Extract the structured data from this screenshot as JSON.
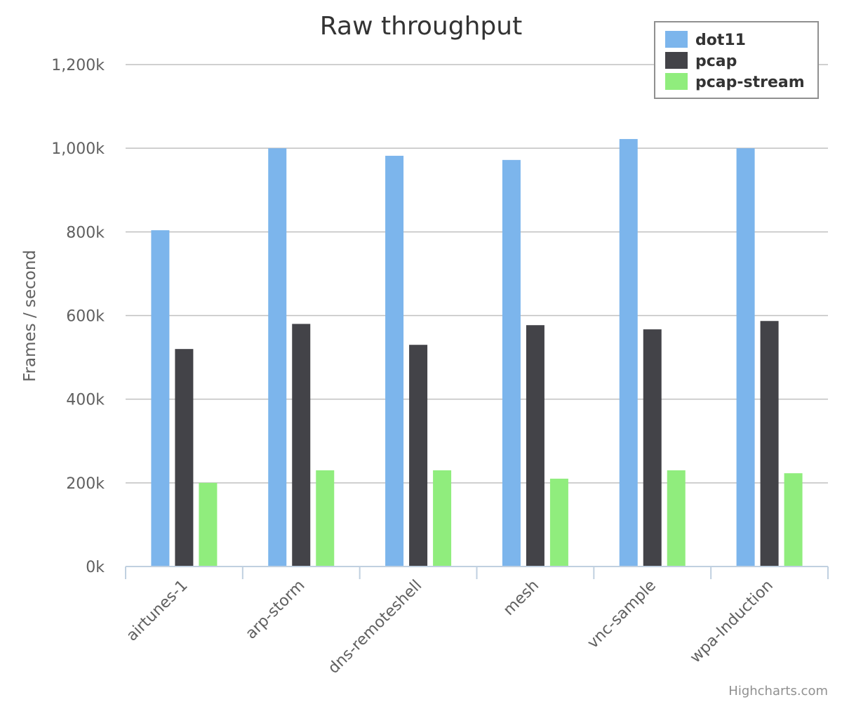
{
  "chart_data": {
    "type": "bar",
    "title": "Raw throughput",
    "ylabel": "Frames / second",
    "ylim": [
      0,
      1200000
    ],
    "yticks": [
      {
        "value": 0,
        "label": "0k"
      },
      {
        "value": 200000,
        "label": "200k"
      },
      {
        "value": 400000,
        "label": "400k"
      },
      {
        "value": 600000,
        "label": "600k"
      },
      {
        "value": 800000,
        "label": "800k"
      },
      {
        "value": 1000000,
        "label": "1,000k"
      },
      {
        "value": 1200000,
        "label": "1,200k"
      }
    ],
    "categories": [
      "airtunes-1",
      "arp-storm",
      "dns-remoteshell",
      "mesh",
      "vnc-sample",
      "wpa-Induction"
    ],
    "series": [
      {
        "name": "dot11",
        "color": "#7cb5ec",
        "values": [
          804000,
          1000000,
          982000,
          972000,
          1022000,
          1000000
        ]
      },
      {
        "name": "pcap",
        "color": "#434348",
        "values": [
          520000,
          580000,
          530000,
          577000,
          567000,
          587000
        ]
      },
      {
        "name": "pcap-stream",
        "color": "#90ed7d",
        "values": [
          200000,
          230000,
          230000,
          210000,
          230000,
          223000
        ]
      }
    ],
    "grid": true,
    "legend_position": "top-right",
    "credits": "Highcharts.com"
  }
}
